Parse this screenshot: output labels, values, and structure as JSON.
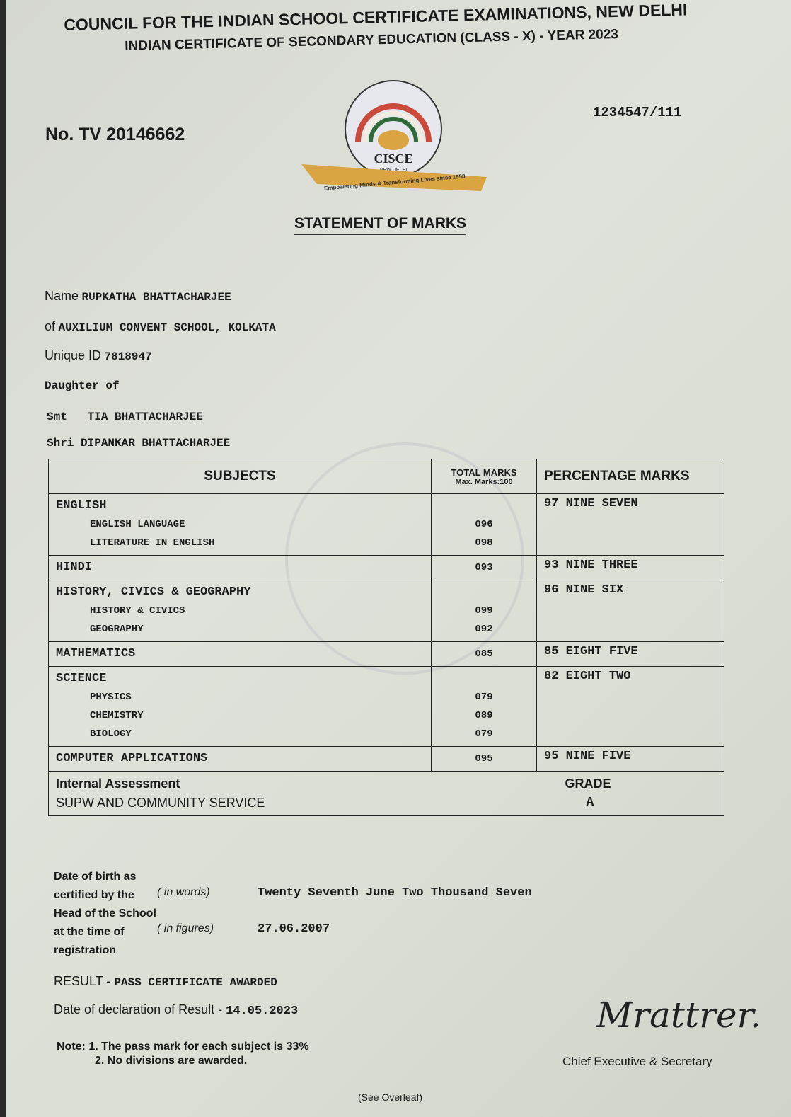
{
  "header": {
    "council": "COUNCIL FOR THE INDIAN SCHOOL CERTIFICATE EXAMINATIONS, NEW DELHI",
    "exam": "INDIAN CERTIFICATE OF SECONDARY EDUCATION (CLASS - X) - YEAR 2023"
  },
  "certificate_no": "No. TV 20146662",
  "serial": "1234547/111",
  "logo": {
    "ring_text": "COUNCIL FOR THE INDIAN SCHOOL CERTIFICATE EXAMINATIONS",
    "name": "CISCE",
    "city": "NEW DELHI",
    "ribbon": "Empowering Minds & Transforming Lives since 1958"
  },
  "title": "STATEMENT OF MARKS",
  "student": {
    "name_label": "Name",
    "name": "RUPKATHA BHATTACHARJEE",
    "school_label": "of",
    "school": "AUXILIUM CONVENT SCHOOL, KOLKATA",
    "uid_label": "Unique ID",
    "uid": "7818947",
    "relation": "Daughter of",
    "mother_label": "Smt",
    "mother": "TIA BHATTACHARJEE",
    "father_label": "Shri",
    "father": "DIPANKAR BHATTACHARJEE"
  },
  "table": {
    "headers": {
      "subjects": "SUBJECTS",
      "total": "TOTAL MARKS",
      "max": "Max. Marks:100",
      "percentage": "PERCENTAGE MARKS"
    },
    "rows": [
      {
        "subject": "ENGLISH",
        "percentage": "97 NINE SEVEN",
        "marks": "",
        "parts": [
          {
            "name": "ENGLISH LANGUAGE",
            "marks": "096"
          },
          {
            "name": "LITERATURE IN ENGLISH",
            "marks": "098"
          }
        ]
      },
      {
        "subject": "HINDI",
        "percentage": "93 NINE THREE",
        "marks": "093",
        "parts": []
      },
      {
        "subject": "HISTORY, CIVICS & GEOGRAPHY",
        "percentage": "96 NINE SIX",
        "marks": "",
        "parts": [
          {
            "name": "HISTORY & CIVICS",
            "marks": "099"
          },
          {
            "name": "GEOGRAPHY",
            "marks": "092"
          }
        ]
      },
      {
        "subject": "MATHEMATICS",
        "percentage": "85 EIGHT FIVE",
        "marks": "085",
        "parts": []
      },
      {
        "subject": "SCIENCE",
        "percentage": "82 EIGHT TWO",
        "marks": "",
        "parts": [
          {
            "name": "PHYSICS",
            "marks": "079"
          },
          {
            "name": "CHEMISTRY",
            "marks": "089"
          },
          {
            "name": "BIOLOGY",
            "marks": "079"
          }
        ]
      },
      {
        "subject": "COMPUTER APPLICATIONS",
        "percentage": "95 NINE FIVE",
        "marks": "095",
        "parts": []
      }
    ],
    "internal": {
      "label": "Internal Assessment",
      "item": "SUPW AND COMMUNITY SERVICE",
      "grade_label": "GRADE",
      "grade": "A"
    }
  },
  "dob": {
    "l1": "Date of birth as",
    "l2": "certified by the",
    "l3": "Head of the School",
    "l4": "at the time of",
    "l5": "registration",
    "words_label": "( in words)",
    "words": "Twenty Seventh June Two Thousand Seven",
    "figures_label": "( in figures)",
    "figures": "27.06.2007"
  },
  "result": {
    "label": "RESULT -",
    "value": "PASS CERTIFICATE AWARDED",
    "date_label": "Date of declaration of Result -",
    "date": "14.05.2023"
  },
  "notes": {
    "label": "Note:",
    "n1": "1. The pass mark for each subject is 33%",
    "n2": "2. No divisions are awarded."
  },
  "signatory": {
    "signature": "Mrattrer.",
    "title": "Chief Executive & Secretary"
  },
  "footer": "(See Overleaf)"
}
